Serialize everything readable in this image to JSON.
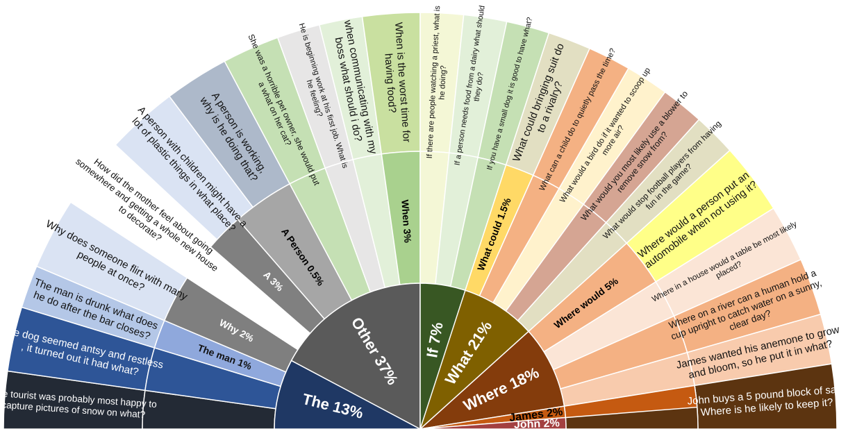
{
  "chart_data": {
    "type": "pie",
    "title": "",
    "categories": [
      {
        "label": "The  13%",
        "color": "#1f3864",
        "text_color": "#ffffff",
        "children": [
          {
            "label": "",
            "color": "#232a35",
            "text_color": "#ffffff",
            "example": [
              "The tourist was probably most happy to",
              "capture pictures of snow on what?"
            ]
          },
          {
            "label": "",
            "color": "#2e5597",
            "text_color": "#ffffff",
            "example": [
              "The dog seemed antsy and restless",
              ", it turned out it had what?"
            ]
          },
          {
            "label": "The man 1%",
            "color": "#8fa8dc",
            "text_color": "#111111",
            "example": [
              "The man is drunk what does",
              "he do after the bar closes?"
            ],
            "example_color": "#b4c7e7"
          }
        ]
      },
      {
        "label": "Other 37%",
        "color": "#5a5a5a",
        "text_color": "#ffffff",
        "children": [
          {
            "label": "Why 2%",
            "color": "#7f7f7f",
            "text_color": "#ffffff",
            "example": [
              "Why does someone flirt with many",
              "people at once?"
            ],
            "example_color": "#dae3f3"
          },
          {
            "label": "",
            "color": "#ffffff",
            "text_color": "#000000",
            "example": [
              "How did the mother feel about going",
              "somewhere and getting a whole new house",
              "to decorate?"
            ]
          },
          {
            "label": "A 3%",
            "color": "#808080",
            "text_color": "#ffffff",
            "example": [
              "A person with children might have a",
              "lot of plastic things in what place?"
            ],
            "example_color": "#dae3f3"
          },
          {
            "label": "A Person 0.5%",
            "color": "#a6a6a6",
            "text_color": "#000000",
            "example": [
              "A person is working,",
              "why is he doing that?"
            ],
            "example_color": "#adb9ca"
          },
          {
            "label": "",
            "color": "#c5e0b4",
            "text_color": "#000000",
            "example": [
              "She was a horrible pet owner, she would put",
              "a what on her cat?"
            ]
          },
          {
            "label": "",
            "color": "#e7e6e6",
            "text_color": "#000000",
            "example": [
              "He is beginning work at his first job. What is",
              "he feeling?"
            ]
          },
          {
            "label": "",
            "color": "#e2f0d9",
            "text_color": "#000000",
            "example": [
              "when communicating with my",
              "boss what should i do?"
            ]
          },
          {
            "label": "When 3%",
            "color": "#a9d18e",
            "text_color": "#000000",
            "example": [
              "When is the worst time for",
              "having food?"
            ],
            "example_color": "#c9e0a0"
          }
        ]
      },
      {
        "label": "If 7%",
        "color": "#385723",
        "text_color": "#ffffff",
        "children": [
          {
            "label": "",
            "color": "#f4f7d6",
            "text_color": "#000000",
            "example": [
              "If there are people watching a priest, what is",
              "he doing?"
            ]
          },
          {
            "label": "",
            "color": "#e2f0d9",
            "text_color": "#000000",
            "example": [
              "If a person needs food from a dairy what should",
              "they do?"
            ]
          },
          {
            "label": "",
            "color": "#c5e0b4",
            "text_color": "#000000",
            "example": [
              "If you have a small dog it is good to have what?"
            ]
          }
        ]
      },
      {
        "label": "What 21%",
        "color": "#7f6000",
        "text_color": "#ffffff",
        "children": [
          {
            "label": "What could 1.5%",
            "color": "#ffd966",
            "text_color": "#000000",
            "example": [
              "What could bringing suit do",
              "to a rivalry?"
            ],
            "example_color": "#e2dfc2"
          },
          {
            "label": "",
            "color": "#f4b183",
            "text_color": "#000000",
            "example": [
              "What can a child do to quietly pass the time?"
            ]
          },
          {
            "label": "",
            "color": "#fff2cc",
            "text_color": "#000000",
            "example": [
              "What would a bird do if it wanted to scoop up",
              "more air?"
            ]
          },
          {
            "label": "",
            "color": "#d5a593",
            "text_color": "#000000",
            "example": [
              "What would you most likely use a blower to",
              "remove snow from?"
            ]
          },
          {
            "label": "",
            "color": "#e2dfc2",
            "text_color": "#000000",
            "example": [
              "What would stop football players from having",
              "fun in the game?"
            ]
          }
        ]
      },
      {
        "label": "Where 18%",
        "color": "#843c0c",
        "text_color": "#ffffff",
        "children": [
          {
            "label": "Where would 5%",
            "color": "#f4b183",
            "text_color": "#000000",
            "example": [
              "Where would a person put an",
              "automobile when not using it?"
            ],
            "example_color": "#ffff88"
          },
          {
            "label": "",
            "color": "#fbe5d6",
            "text_color": "#000000",
            "example": [
              "Where in a house would a table be most likely",
              "placed?"
            ]
          },
          {
            "label": "",
            "color": "#f4b183",
            "text_color": "#000000",
            "example": [
              "Where on a river can a human hold a",
              "cup upright to catch water on a sunny,",
              "clear day?"
            ]
          },
          {
            "label": "",
            "color": "#f8cbad",
            "text_color": "#000000",
            "example": [
              "James wanted his anemone to grow",
              "and bloom, so he put it in what?"
            ]
          }
        ]
      },
      {
        "label": "James 2%",
        "color": "#c55a11",
        "text_color": "#000000",
        "children": []
      },
      {
        "label": "John 2%",
        "color": "#a34040",
        "text_color": "#ffffff",
        "children": [
          {
            "label": "",
            "color": "#5c3410",
            "text_color": "#ffffff",
            "example": [
              "John buys a 5 pound block of salt.",
              "Where is he likely to keep it?"
            ]
          }
        ]
      }
    ],
    "grid": false,
    "legend": "none"
  }
}
